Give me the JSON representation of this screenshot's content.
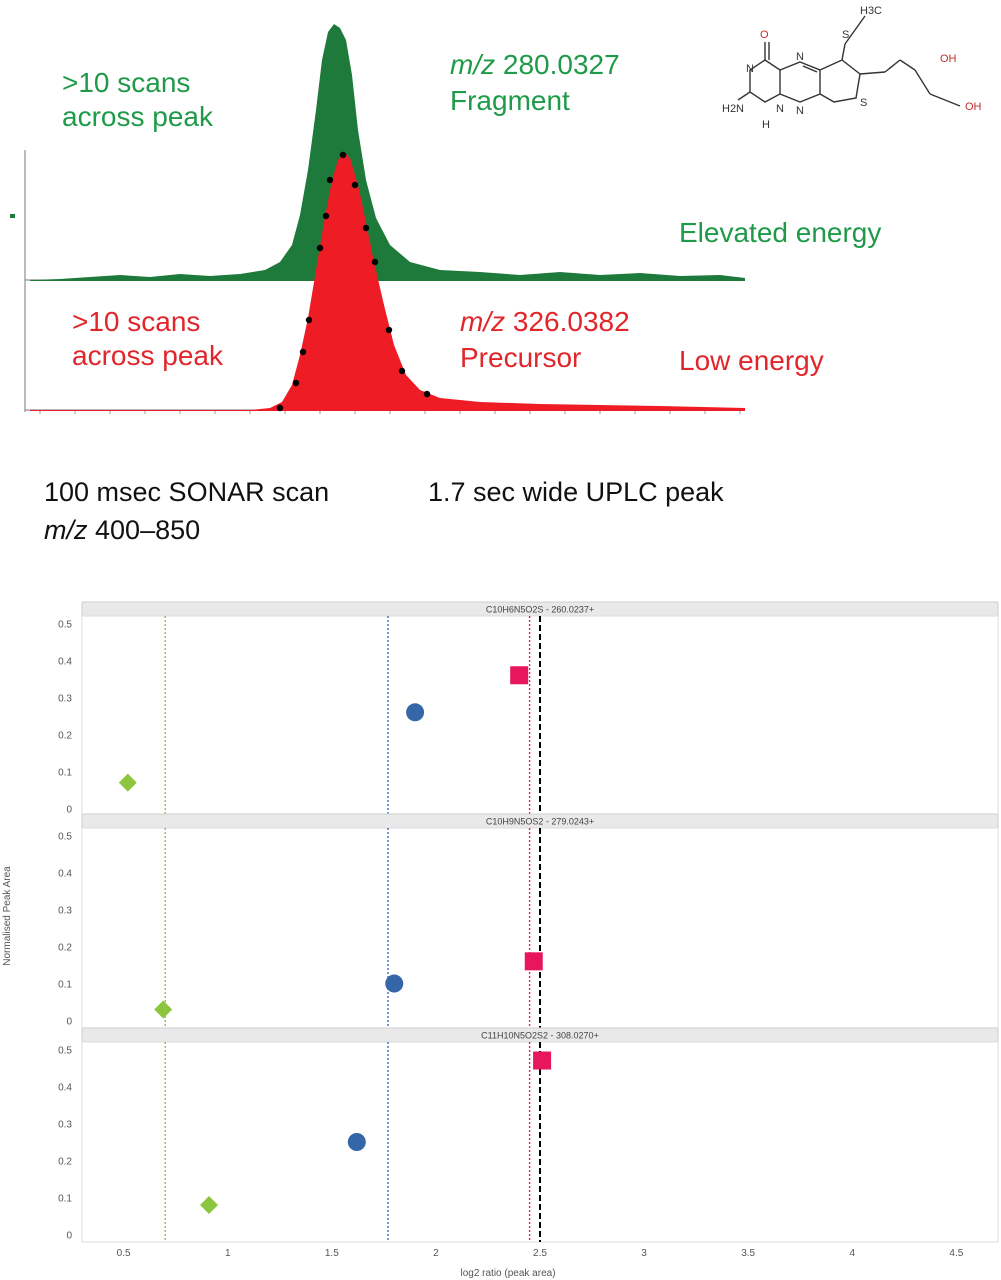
{
  "chromatogram": {
    "fragment_scan_label": ">10 scans\nacross peak",
    "fragment_mz_prefix": "m/z",
    "fragment_mz_value": "280.0327",
    "fragment_name": "Fragment",
    "elevated_energy": "Elevated energy",
    "precursor_scan_label": ">10 scans\nacross peak",
    "precursor_mz_prefix": "m/z",
    "precursor_mz_value": "326.0382",
    "precursor_name": "Precursor",
    "low_energy": "Low energy",
    "colors": {
      "fragment": "#1e7a3a",
      "precursor": "#ee1c24"
    }
  },
  "molecule": {
    "atoms": [
      "O",
      "N",
      "N",
      "H2N",
      "N",
      "H",
      "N",
      "S",
      "S",
      "H3C",
      "OH",
      "OH"
    ]
  },
  "info": {
    "scan_text": "100 msec SONAR scan",
    "range_prefix": "m/z",
    "range_value": "400–850",
    "peak_text": "1.7 sec wide UPLC peak"
  },
  "chart_data": {
    "type": "scatter",
    "xlabel": "log2 ratio (peak area)",
    "ylabel": "Normalised Peak Area",
    "x_ticks": [
      "0.5",
      "1",
      "1.5",
      "2",
      "2.5",
      "3",
      "3.5",
      "4",
      "4.5"
    ],
    "y_ticks": [
      "0",
      "0.1",
      "0.2",
      "0.3",
      "0.4",
      "0.5"
    ],
    "xlim": [
      0.3,
      4.7
    ],
    "ylim": [
      -0.02,
      0.52
    ],
    "reference_lines": [
      {
        "x": 0.7,
        "color": "#8cc63f"
      },
      {
        "x": 1.77,
        "color": "#3a6fb5"
      },
      {
        "x": 2.45,
        "color": "#e0245e"
      },
      {
        "x": 2.5,
        "color": "#000000"
      }
    ],
    "markers": [
      {
        "shape": "diamond",
        "color": "#8cc63f"
      },
      {
        "shape": "circle",
        "color": "#3566a8"
      },
      {
        "shape": "square",
        "color": "#e8175d"
      }
    ],
    "panels": [
      {
        "title": "C10H6N5O2S - 260.0237+",
        "points": [
          [
            0.52,
            0.07
          ],
          [
            1.9,
            0.26
          ],
          [
            2.4,
            0.36
          ]
        ]
      },
      {
        "title": "C10H9N5OS2 - 279.0243+",
        "points": [
          [
            0.69,
            0.03
          ],
          [
            1.8,
            0.1
          ],
          [
            2.47,
            0.16
          ]
        ]
      },
      {
        "title": "C11H10N5O2S2 - 308.0270+",
        "points": [
          [
            0.91,
            0.08
          ],
          [
            1.62,
            0.25
          ],
          [
            2.51,
            0.47
          ]
        ]
      }
    ]
  }
}
